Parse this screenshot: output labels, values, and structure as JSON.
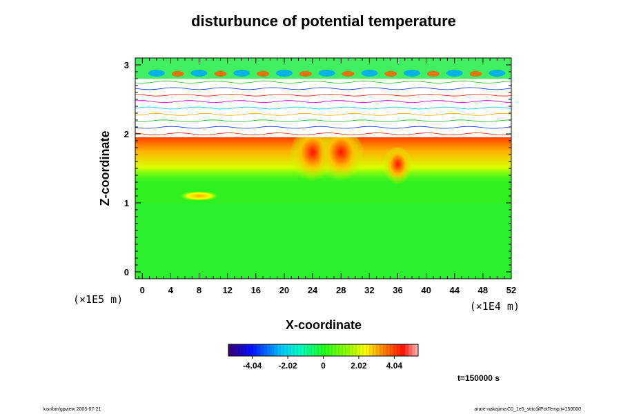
{
  "chart_data": {
    "type": "heatmap",
    "title": "disturbunce of potential temperature",
    "xlabel": "X-coordinate",
    "ylabel": "Z-coordinate",
    "x_unit": "(×1E4 m)",
    "y_unit": "(×1E5 m)",
    "xlim": [
      -1,
      52
    ],
    "ylim": [
      -0.1,
      3.1
    ],
    "x_ticks": [
      0,
      4,
      8,
      12,
      16,
      20,
      24,
      28,
      32,
      36,
      40,
      44,
      48,
      52
    ],
    "y_ticks": [
      0,
      1,
      2,
      3
    ],
    "colorbar": {
      "min": -5.4,
      "max": 5.4,
      "tick_values": [
        -4.04,
        -2.02,
        0,
        2.02,
        4.04
      ],
      "tick_labels": [
        "-4.04",
        "-2.02",
        "0",
        "2.02",
        "4.04"
      ]
    },
    "field_description": {
      "background_value": 0.3,
      "warm_band": {
        "z_from": 1.6,
        "z_to": 2.0,
        "peak_value": 4.0
      },
      "warm_plumes_x": [
        24,
        28,
        36
      ],
      "warm_patch": {
        "x": 8,
        "z": 1.1,
        "value": 3.0
      },
      "undefined_layer_z": [
        1.95,
        2.8
      ],
      "top_layer_z": [
        2.8,
        3.1
      ]
    },
    "time_label": "t=150000 s"
  },
  "colors": {
    "accent_warm": "#ff2000",
    "accent_cold": "#0030ff",
    "background_green": "#30f020"
  },
  "footer": {
    "left": "/usr/bin/gpview 2005-07-21",
    "right_main": "arare-nakajima",
    "right_small": "C0_1e5_stitc@PotTemp;t=150000"
  }
}
